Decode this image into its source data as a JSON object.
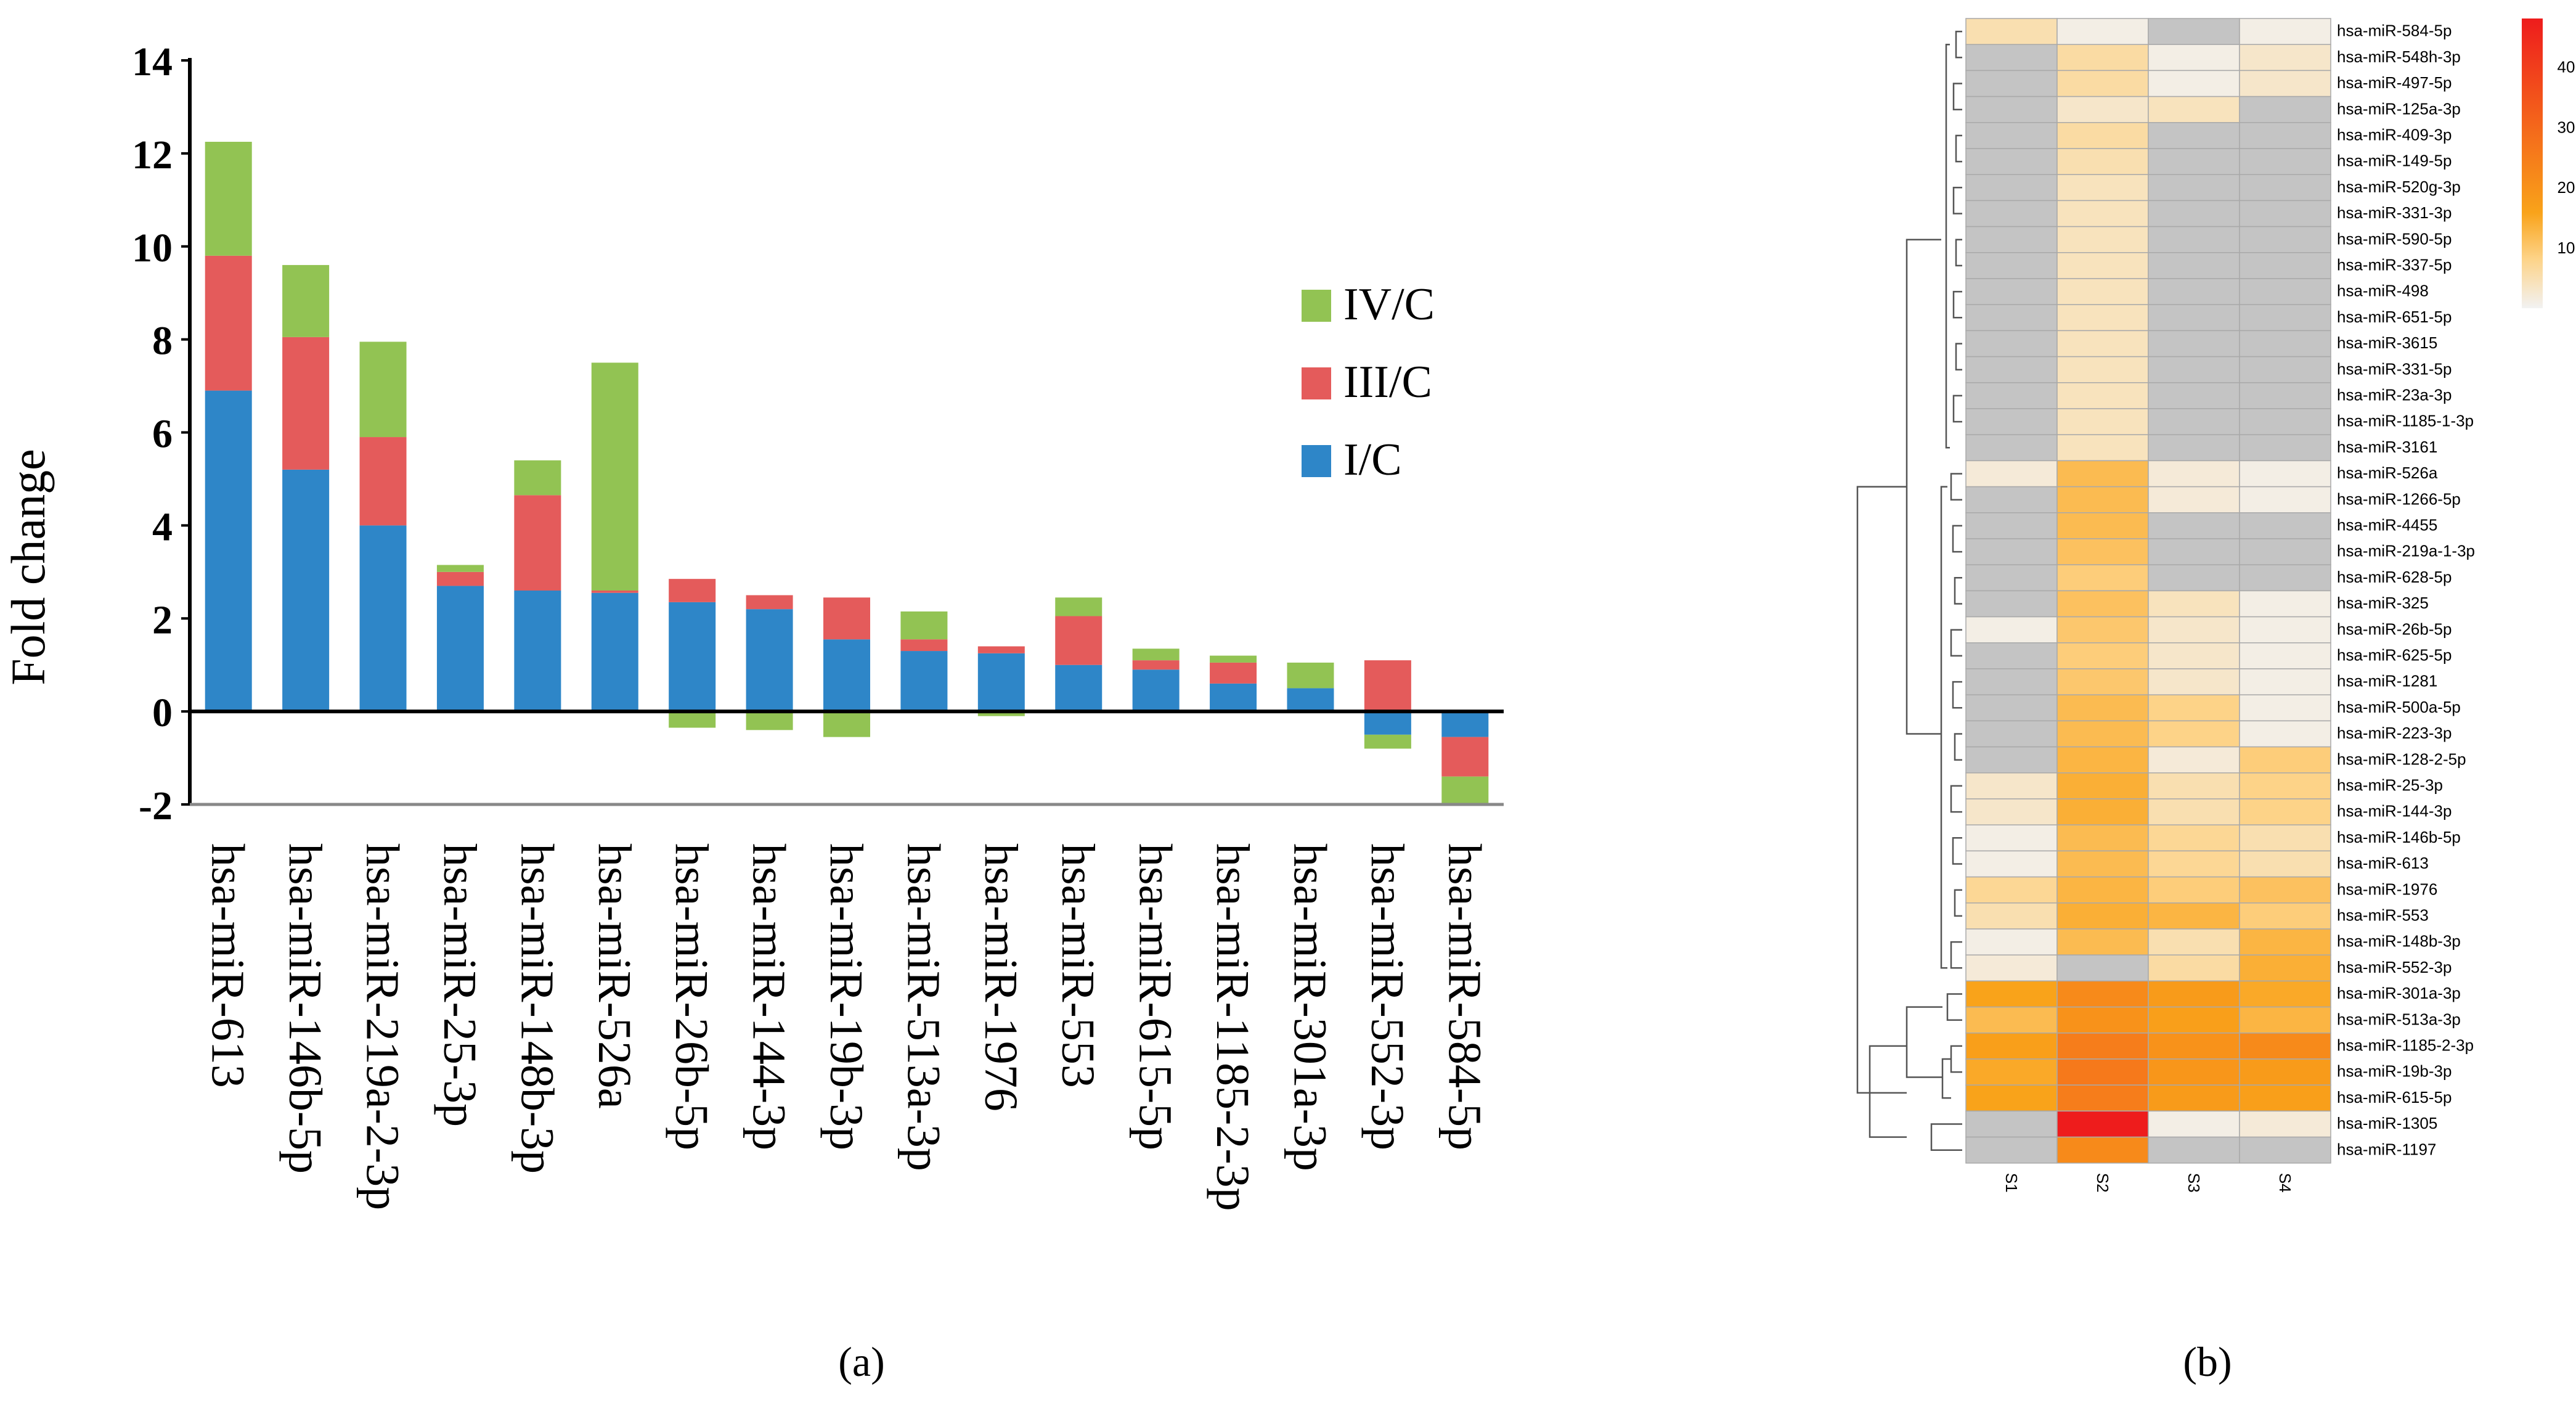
{
  "chart_data": [
    {
      "type": "bar",
      "stacked": true,
      "panel_label": "(a)",
      "title": "",
      "xlabel": "",
      "ylabel": "Fold change",
      "ylim": [
        -2,
        14
      ],
      "yticks": [
        14,
        12,
        10,
        8,
        6,
        4,
        2,
        0,
        -2
      ],
      "ytick_labels": [
        "14",
        "12",
        "10",
        "8",
        "6",
        "4",
        "2",
        "0",
        "-2"
      ],
      "legend_position": "right",
      "categories": [
        "hsa-miR-613",
        "hsa-miR-146b-5p",
        "hsa-miR-219a-2-3p",
        "hsa-miR-25-3p",
        "hsa-miR-148b-3p",
        "hsa-miR-526a",
        "hsa-miR-26b-5p",
        "hsa-miR-144-3p",
        "hsa-miR-19b-3p",
        "hsa-miR-513a-3p",
        "hsa-miR-1976",
        "hsa-miR-553",
        "hsa-miR-615-5p",
        "hsa-miR-1185-2-3p",
        "hsa-miR-301a-3p",
        "hsa-miR-552-3p",
        "hsa-miR-584-5p"
      ],
      "series": [
        {
          "name": "I/C",
          "color": "#2e86c8",
          "values": [
            6.9,
            5.2,
            4.0,
            2.7,
            2.6,
            2.55,
            2.35,
            2.2,
            1.55,
            1.3,
            1.25,
            1.0,
            0.9,
            0.6,
            0.5,
            -0.5,
            -0.55
          ]
        },
        {
          "name": "III/C",
          "color": "#e45b5b",
          "values": [
            2.9,
            2.85,
            1.9,
            0.3,
            2.05,
            0.05,
            0.5,
            0.3,
            0.9,
            0.25,
            0.15,
            1.05,
            0.2,
            0.45,
            0.0,
            1.1,
            -0.85
          ]
        },
        {
          "name": "IV/C",
          "color": "#92c353",
          "values": [
            2.45,
            1.55,
            2.05,
            0.15,
            0.75,
            4.9,
            -0.35,
            -0.4,
            -0.55,
            0.6,
            -0.1,
            0.4,
            0.25,
            0.15,
            0.55,
            -0.3,
            -0.6
          ]
        }
      ],
      "legend_order": [
        "IV/C",
        "III/C",
        "I/C"
      ]
    },
    {
      "type": "heatmap",
      "panel_label": "(b)",
      "columns": [
        "S1",
        "S2",
        "S3",
        "S4"
      ],
      "rows": [
        "hsa-miR-584-5p",
        "hsa-miR-548h-3p",
        "hsa-miR-497-5p",
        "hsa-miR-125a-3p",
        "hsa-miR-409-3p",
        "hsa-miR-149-5p",
        "hsa-miR-520g-3p",
        "hsa-miR-331-3p",
        "hsa-miR-590-5p",
        "hsa-miR-337-5p",
        "hsa-miR-498",
        "hsa-miR-651-5p",
        "hsa-miR-3615",
        "hsa-miR-331-5p",
        "hsa-miR-23a-3p",
        "hsa-miR-1185-1-3p",
        "hsa-miR-3161",
        "hsa-miR-526a",
        "hsa-miR-1266-5p",
        "hsa-miR-4455",
        "hsa-miR-219a-1-3p",
        "hsa-miR-628-5p",
        "hsa-miR-325",
        "hsa-miR-26b-5p",
        "hsa-miR-625-5p",
        "hsa-miR-1281",
        "hsa-miR-500a-5p",
        "hsa-miR-223-3p",
        "hsa-miR-128-2-5p",
        "hsa-miR-25-3p",
        "hsa-miR-144-3p",
        "hsa-miR-146b-5p",
        "hsa-miR-613",
        "hsa-miR-1976",
        "hsa-miR-553",
        "hsa-miR-148b-3p",
        "hsa-miR-552-3p",
        "hsa-miR-301a-3p",
        "hsa-miR-513a-3p",
        "hsa-miR-1185-2-3p",
        "hsa-miR-19b-3p",
        "hsa-miR-615-5p",
        "hsa-miR-1305",
        "hsa-miR-1197"
      ],
      "values": [
        [
          5,
          1,
          0,
          1
        ],
        [
          0,
          6,
          1,
          3
        ],
        [
          0,
          6,
          1,
          3
        ],
        [
          0,
          3,
          4,
          0
        ],
        [
          0,
          6,
          0,
          0
        ],
        [
          0,
          5,
          0,
          0
        ],
        [
          0,
          4,
          0,
          0
        ],
        [
          0,
          4,
          0,
          0
        ],
        [
          0,
          4,
          0,
          0
        ],
        [
          0,
          4,
          0,
          0
        ],
        [
          0,
          4,
          0,
          0
        ],
        [
          0,
          4,
          0,
          0
        ],
        [
          0,
          4,
          0,
          0
        ],
        [
          0,
          4,
          0,
          0
        ],
        [
          0,
          4,
          0,
          0
        ],
        [
          0,
          4,
          0,
          0
        ],
        [
          0,
          4,
          0,
          0
        ],
        [
          2,
          12,
          2,
          1
        ],
        [
          0,
          12,
          2,
          1
        ],
        [
          0,
          12,
          0,
          0
        ],
        [
          0,
          11,
          0,
          0
        ],
        [
          0,
          9,
          0,
          0
        ],
        [
          0,
          11,
          4,
          1
        ],
        [
          1,
          10,
          3,
          1
        ],
        [
          0,
          9,
          3,
          1
        ],
        [
          0,
          10,
          3,
          1
        ],
        [
          0,
          12,
          8,
          1
        ],
        [
          0,
          12,
          8,
          1
        ],
        [
          0,
          13,
          2,
          9
        ],
        [
          3,
          14,
          5,
          8
        ],
        [
          3,
          14,
          5,
          8
        ],
        [
          1,
          12,
          7,
          5
        ],
        [
          1,
          12,
          7,
          5
        ],
        [
          7,
          13,
          9,
          11
        ],
        [
          5,
          14,
          13,
          9
        ],
        [
          1,
          12,
          5,
          13
        ],
        [
          2,
          0,
          6,
          14
        ],
        [
          16,
          22,
          18,
          15
        ],
        [
          12,
          20,
          17,
          13
        ],
        [
          17,
          25,
          20,
          22
        ],
        [
          15,
          26,
          19,
          18
        ],
        [
          16,
          25,
          18,
          17
        ],
        [
          0,
          48,
          1,
          2
        ],
        [
          0,
          22,
          0,
          0
        ]
      ],
      "colorbar_ticks": [
        10,
        20,
        30,
        40
      ],
      "colorbar_range": [
        0,
        48
      ],
      "colors": {
        "missing": "#c4c4c4",
        "low": "#f2f2f2",
        "mid": "#fdd388",
        "orange": "#f9a31a",
        "high": "#ee1c1c"
      }
    }
  ]
}
